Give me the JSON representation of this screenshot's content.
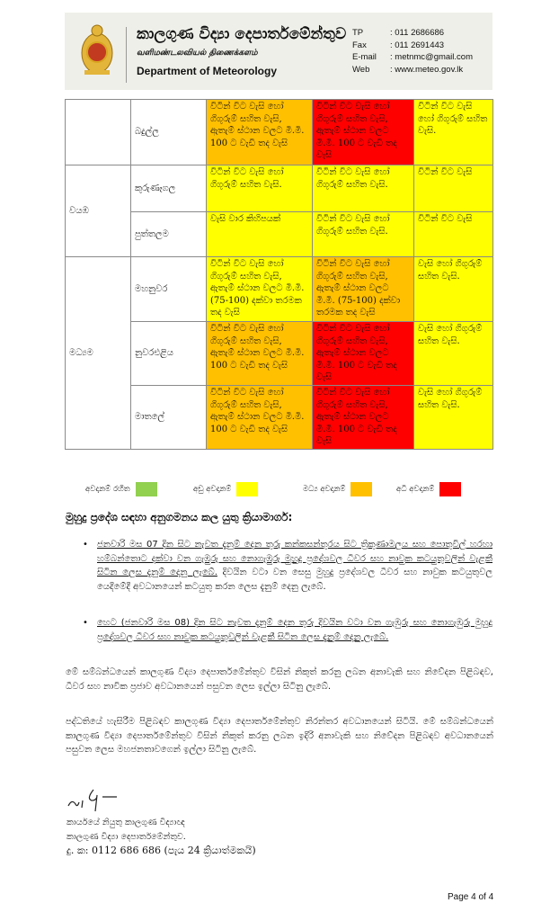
{
  "header": {
    "title_si": "කාලගුණ විද්‍යා දෙපාර්තමේන්තුව",
    "title_ta": "வளிமண்டலவியல் திணைக்களம்",
    "title_en": "Department of Meteorology",
    "contacts": [
      {
        "k": "TP",
        "v": ": 011 2686686"
      },
      {
        "k": "Fax",
        "v": ": 011 2691443"
      },
      {
        "k": "E-mail",
        "v": ": metnmc@gmail.com"
      },
      {
        "k": "Web",
        "v": ": www.meteo.gov.lk"
      }
    ]
  },
  "table": {
    "rows": [
      {
        "province": "",
        "district": "බදුල්ල",
        "cells": [
          {
            "t": "විටින් විට වැසි හෝ ගිගුරුම් සහිත වැසි, ඇතැම් ස්ථාන වලට මි.මි. 100 ට වැඩි තද වැසි",
            "c": "o"
          },
          {
            "t": "විටින් විට වැසි හෝ ගිගුරුම් සහිත වැසි, ඇතැම් ස්ථාන වලට මි.මි. 100 ට වැඩි තද වැසි",
            "c": "r"
          },
          {
            "t": "විටින් විට වැසි හෝ ගිගුරුම් සහිත වැසි.",
            "c": "y"
          }
        ]
      },
      {
        "province": "වයඹ",
        "district": "කුරුණෑගල",
        "cells": [
          {
            "t": "විටින් විට වැසි හෝ ගිගුරුම් සහිත වැසි.",
            "c": "y"
          },
          {
            "t": "විටින් විට වැසි හෝ ගිගුරුම් සහිත වැසි.",
            "c": "y"
          },
          {
            "t": "විටින් විට වැසි",
            "c": "y"
          }
        ]
      },
      {
        "province": "",
        "district": "පුත්තලම",
        "cells": [
          {
            "t": "වැසි වාර කිහිපයක්",
            "c": "y"
          },
          {
            "t": "විටින් විට වැසි හෝ ගිගුරුම් සහිත වැසි.",
            "c": "y"
          },
          {
            "t": "විටින් විට වැසි",
            "c": "y"
          }
        ]
      },
      {
        "province": "මධ්‍යම",
        "district": "මහනුවර",
        "cells": [
          {
            "t": "විටින් විට වැසි හෝ ගිගුරුම් සහිත වැසි, ඇතැම් ස්ථාන වලට මි.මි. (75-100) දක්වා තරමක තද වැසි",
            "c": "y"
          },
          {
            "t": "විටින් විට වැසි හෝ ගිගුරුම් සහිත වැසි, ඇතැම් ස්ථාන වලට මි.මි. (75-100) දක්වා තරමක තද වැසි",
            "c": "o"
          },
          {
            "t": "වැසි හෝ ගිගුරුම් සහිත වැසි.",
            "c": "y"
          }
        ]
      },
      {
        "province": "",
        "district": "නුවරඑළිය",
        "cells": [
          {
            "t": "විටින් විට වැසි හෝ ගිගුරුම් සහිත වැසි, ඇතැම් ස්ථාන වලට මි.මි. 100 ට වැඩි තද වැසි",
            "c": "o"
          },
          {
            "t": "විටින් විට වැසි හෝ ගිගුරුම් සහිත වැසි, ඇතැම් ස්ථාන වලට මි.මි. 100 ට වැඩි තද වැසි",
            "c": "r"
          },
          {
            "t": "වැසි හෝ ගිගුරුම් සහිත වැසි.",
            "c": "y"
          }
        ]
      },
      {
        "province": "",
        "district": "මාතලේ",
        "cells": [
          {
            "t": "විටින් විට වැසි හෝ ගිගුරුම් සහිත වැසි, ඇතැම් ස්ථාන වලට මි.මි. 100 ට වැඩි තද වැසි",
            "c": "o"
          },
          {
            "t": "විටින් විට වැසි හෝ ගිගුරුම් සහිත වැසි, ඇතැම් ස්ථාන වලට මි.මි. 100 ට වැඩි තද වැසි",
            "c": "r"
          },
          {
            "t": "වැසි හෝ ගිගුරුම් සහිත වැසි.",
            "c": "y"
          }
        ]
      }
    ]
  },
  "legend": [
    {
      "label": "අවදානම් රහිත",
      "color": "#92d050"
    },
    {
      "label": "අඩු අවදානම්",
      "color": "#ffff00"
    },
    {
      "label": "මධ්‍ය අවදානම්",
      "color": "#ffc000"
    },
    {
      "label": "අධි අවදානම්",
      "color": "#ff0000"
    }
  ],
  "marine": {
    "heading": "මුහුදු ප්‍රදේශ සඳහා අනුගමනය කල යුතු ක්‍රියාමාර්ග:",
    "bullet1_underlined": "ජනවාරි මස 07 දින සිට නැවත දැනුම් දෙන තුරු කන්කසන්තුරය සිට ත්‍රිකුණාමලය සහ පොතුවිල් හරහා හම්බන්තොට දක්වා වන ගැඹුරු සහ නොගැඹුරු මුහුදු ප්‍රදේශවල ධීවර සහ නාවුක කටයුතුවලින් වැළකී සිටින ලෙස දැනුම් දෙනු ලැබේ.",
    "bullet1_rest": " දිවයින වටා වන සෙසු මුහුදු ප්‍රදේශවල ධීවර සහ නාවුක කටයුතුවල යෙදීමේදී අවධානයෙන් කටයුතු කරන ලෙස දැනුම් දෙනු ලැබේ.",
    "bullet2": "හෙට (ජනවාරි මස 08) දින සිට නැවත දැනුම් දෙන තුරු දිවයින වටා වන ගැඹුරු සහ නොගැඹුරු මුහුදු ප්‍රදේශවල ධීවර සහ නාවුක කටයුතුවලින් වැළකී සිටින ලෙස දැනුම් දෙනු ලැබේ."
  },
  "para1": "මේ සම්බන්ධයෙන් කාලගුණ විද්‍යා දෙපාර්තමේන්තුව විසින් නිකුත් කරනු ලබන අනාවැකි සහ නිවේදන පිළිබඳව, ධීවර සහ නාවික ප්‍රජාව අවධානයෙන් පසුවන ලෙස ඉල්ලා සිටිනු ලැබේ.",
  "para2": "පද්ධතියේ හැසිරීම පිළිබඳව කාලගුණ විද්‍යා දෙපාර්තමේන්තුව නිරන්තර අවධානයෙන් සිටියි. මේ සම්බන්ධයෙන් කාලගුණ විද්‍යා දෙපාර්තමේන්තුව විසින් නිකුත් කරනු ලබන ඉදිරි අනාවැකි සහ නිවේදන පිළිබඳව අවධානයෙන් පසුවන ලෙස මහජනතාවගෙන් ඉල්ලා සිටිනු ලැබේ.",
  "signature": {
    "line1": "කාර්යයේ නියුතු කාලගුණ විද්‍යාඥ",
    "line2": "කාලගුණ විද්‍යා දෙපාර්තමේන්තුව.",
    "line3": "දු. ක: 0112 686 686 (පැය 24 ක්‍රියාත්මකයි)"
  },
  "footer": {
    "page": "Page 4 of 4"
  }
}
